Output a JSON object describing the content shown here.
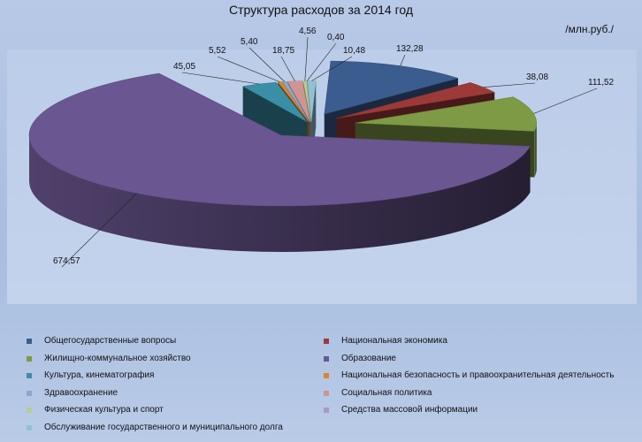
{
  "chart_data": {
    "type": "pie",
    "title": "Структура расходов за 2014 год",
    "unit": "/млн.руб./",
    "legend_position": "bottom",
    "series": [
      {
        "name": "",
        "values": [
          {
            "label": "Общегосударственные вопросы",
            "value": 132.28,
            "value_text": "132,28",
            "color": "#3b5c8f"
          },
          {
            "label": "Национальная экономика",
            "value": 38.08,
            "value_text": "38,08",
            "color": "#9c3a38"
          },
          {
            "label": "Жилищно-коммунальное хозяйство",
            "value": 111.52,
            "value_text": "111,52",
            "color": "#7e9a44"
          },
          {
            "label": "Образование",
            "value": 674.57,
            "value_text": "674,57",
            "color": "#6a5690"
          },
          {
            "label": "Культура, кинематография",
            "value": 45.05,
            "value_text": "45,05",
            "color": "#3a8ea6"
          },
          {
            "label": "Национальная безопасность и правоохранительная деятельность",
            "value": 5.52,
            "value_text": "5,52",
            "color": "#d98530"
          },
          {
            "label": "Здравоохранение",
            "value": 5.4,
            "value_text": "5,40",
            "color": "#8da8cf"
          },
          {
            "label": "Социальная политика",
            "value": 18.75,
            "value_text": "18,75",
            "color": "#cf9594"
          },
          {
            "label": "Физическая культура и спорт",
            "value": 4.56,
            "value_text": "4,56",
            "color": "#b7cc8e"
          },
          {
            "label": "Средства массовой информации",
            "value": 0.4,
            "value_text": "0,40",
            "color": "#a89bbf"
          },
          {
            "label": "Обслуживание государственного и муниципального долга",
            "value": 10.48,
            "value_text": "10,48",
            "color": "#8fc3d3"
          }
        ]
      }
    ]
  }
}
